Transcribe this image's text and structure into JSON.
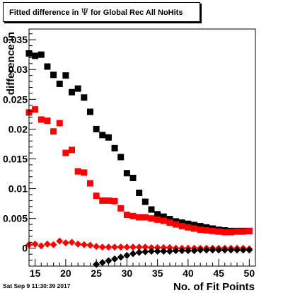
{
  "chart_data": {
    "type": "scatter",
    "title_parts": [
      "Fitted difference in ",
      "Ψ",
      " for Global Rec All NoHits"
    ],
    "xlabel": "No. of Fit Points",
    "ylabel": "difference in",
    "xlim": [
      14,
      51
    ],
    "ylim": [
      -0.003,
      0.0368
    ],
    "x_ticks": [
      15,
      20,
      25,
      30,
      35,
      40,
      45,
      50
    ],
    "y_ticks": [
      0,
      0.005,
      0.01,
      0.015,
      0.02,
      0.025,
      0.03,
      0.035
    ],
    "y_tick_labels": [
      "0",
      "0.005",
      "0.01",
      "0.015",
      "0.02",
      "0.025",
      "0.03",
      "0.035"
    ],
    "series": [
      {
        "color": "#000000",
        "marker": "square",
        "x": [
          14,
          15,
          16,
          17,
          18,
          19,
          20,
          21,
          22,
          23,
          24,
          25,
          26,
          27,
          28,
          29,
          30,
          31,
          32,
          33,
          34,
          35,
          36,
          37,
          38,
          39,
          40,
          41,
          42,
          43,
          44,
          45,
          46,
          47,
          48,
          49,
          50
        ],
        "y": [
          0.0327,
          0.0323,
          0.0325,
          0.0305,
          0.0291,
          0.0276,
          0.029,
          0.0262,
          0.0268,
          0.0253,
          0.0229,
          0.02,
          0.019,
          0.0186,
          0.0168,
          0.0153,
          0.0126,
          0.0118,
          0.0093,
          0.0078,
          0.0065,
          0.0057,
          0.0053,
          0.0049,
          0.0045,
          0.0043,
          0.0041,
          0.0039,
          0.0037,
          0.0035,
          0.0033,
          0.0031,
          0.003,
          0.0029,
          0.0029,
          0.0029,
          0.0029
        ]
      },
      {
        "color": "#ff0000",
        "marker": "square",
        "x": [
          14,
          15,
          16,
          17,
          18,
          19,
          20,
          21,
          22,
          23,
          24,
          25,
          26,
          27,
          28,
          29,
          30,
          31,
          32,
          33,
          34,
          35,
          36,
          37,
          38,
          39,
          40,
          41,
          42,
          43,
          44,
          45,
          46,
          47,
          48,
          49,
          50
        ],
        "y": [
          0.0228,
          0.0233,
          0.0216,
          0.0214,
          0.0196,
          0.021,
          0.016,
          0.0165,
          0.0129,
          0.0127,
          0.0109,
          0.0088,
          0.008,
          0.008,
          0.0079,
          0.0067,
          0.0056,
          0.0054,
          0.0052,
          0.0052,
          0.005,
          0.0048,
          0.0046,
          0.0043,
          0.004,
          0.0037,
          0.0035,
          0.0033,
          0.0031,
          0.003,
          0.0029,
          0.0028,
          0.0027,
          0.0027,
          0.0028,
          0.0028,
          0.0029
        ]
      },
      {
        "color": "#ff0000",
        "marker": "diamond",
        "x": [
          14,
          15,
          16,
          17,
          18,
          19,
          20,
          21,
          22,
          23,
          24,
          25,
          26,
          27,
          28,
          29,
          30,
          31,
          32,
          33,
          34,
          35,
          36,
          37,
          38,
          39,
          40,
          41,
          42,
          43,
          44,
          45,
          46,
          47,
          48,
          49,
          50
        ],
        "y": [
          0.0006,
          0.0007,
          0.0004,
          0.0007,
          0.0006,
          0.0012,
          0.0009,
          0.001,
          0.0007,
          0.0006,
          0.0005,
          0.0003,
          0.0002,
          0.0002,
          0.0002,
          0.0002,
          0.0002,
          0.0002,
          0.0002,
          0.0002,
          0.0001,
          0.0001,
          0.0001,
          0.0001,
          0.0,
          0.0,
          0.0,
          0.0,
          0.0,
          0.0,
          0.0,
          0.0,
          0.0,
          0.0,
          0.0,
          0.0,
          -0.0001
        ]
      },
      {
        "color": "#000000",
        "marker": "diamond",
        "x": [
          25,
          26,
          27,
          28,
          29,
          30,
          31,
          32,
          33,
          34,
          35,
          36,
          37,
          38,
          39,
          40,
          41,
          42,
          43,
          44,
          45,
          46,
          47,
          48,
          49,
          50
        ],
        "y": [
          -0.0027,
          -0.0024,
          -0.0021,
          -0.0018,
          -0.0015,
          -0.0012,
          -0.0009,
          -0.0007,
          -0.0006,
          -0.0005,
          -0.0005,
          -0.0005,
          -0.0005,
          -0.0004,
          -0.0004,
          -0.0004,
          -0.0004,
          -0.0003,
          -0.0003,
          -0.0003,
          -0.0003,
          -0.0003,
          -0.0003,
          -0.0003,
          -0.0003,
          -0.0003
        ]
      }
    ]
  },
  "footer": {
    "timestamp": "Sat Sep  9 11:30:39 2017"
  }
}
